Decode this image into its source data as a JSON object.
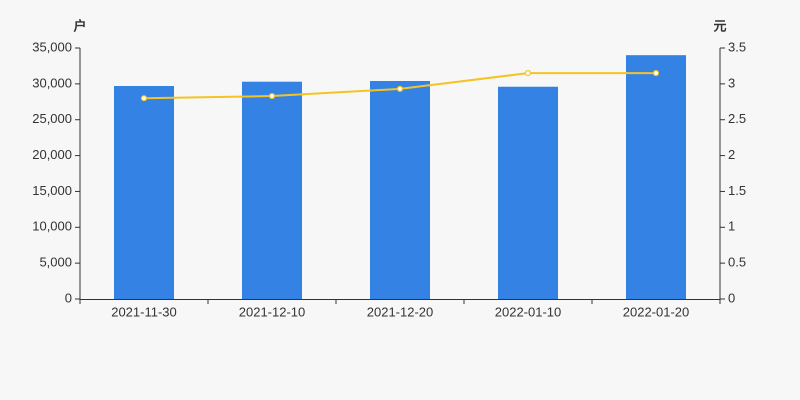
{
  "chart_data": {
    "type": "bar",
    "ylabel": "户",
    "y2label": "元",
    "categories": [
      "2021-11-30",
      "2021-12-10",
      "2021-12-20",
      "2022-01-10",
      "2022-01-20"
    ],
    "series": [
      {
        "type": "bar",
        "color": "#3483e4",
        "values": [
          29700,
          30300,
          30400,
          29600,
          34000
        ]
      },
      {
        "type": "line",
        "axis": "y2",
        "color": "#f5c323",
        "values": [
          2.8,
          2.83,
          2.93,
          3.15,
          3.15
        ]
      }
    ],
    "ylim": [
      0,
      35000
    ],
    "yticks": [
      0,
      {
        "value": 5000,
        "label": "5,000"
      },
      {
        "value": 10000,
        "label": "10,000"
      },
      {
        "value": 15000,
        "label": "15,000"
      },
      {
        "value": 20000,
        "label": "20,000"
      },
      {
        "value": 25000,
        "label": "25,000"
      },
      {
        "value": 30000,
        "label": "30,000"
      },
      {
        "value": 35000,
        "label": "35,000"
      }
    ],
    "y2lim": [
      0,
      3.5
    ],
    "y2ticks": [
      0,
      0.5,
      1,
      1.5,
      2,
      2.5,
      3,
      3.5
    ],
    "grid": false
  }
}
